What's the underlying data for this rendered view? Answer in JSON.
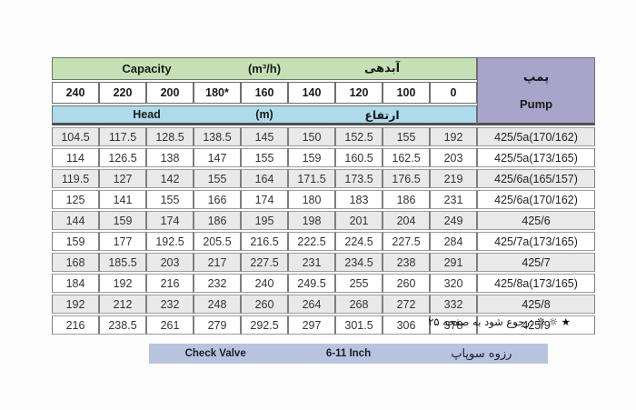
{
  "table": {
    "header": {
      "capacity_label": "Capacity",
      "capacity_unit": "(m³/h)",
      "capacity_label_fa": "آبدهی",
      "head_label": "Head",
      "head_unit": "(m)",
      "head_label_fa": "ارتفاع",
      "pump_label_fa": "پمپ",
      "pump_label_en": "Pump",
      "flow_columns": [
        "240",
        "220",
        "200",
        "180*",
        "160",
        "140",
        "120",
        "100",
        "0"
      ]
    },
    "rows": [
      {
        "values": [
          "104.5",
          "117.5",
          "128.5",
          "138.5",
          "145",
          "150",
          "152.5",
          "155",
          "192"
        ],
        "pump": "425/5a(170/162)"
      },
      {
        "values": [
          "114",
          "126.5",
          "138",
          "147",
          "155",
          "159",
          "160.5",
          "162.5",
          "203"
        ],
        "pump": "425/5a(173/165)"
      },
      {
        "values": [
          "119.5",
          "127",
          "142",
          "155",
          "164",
          "171.5",
          "173.5",
          "176.5",
          "219"
        ],
        "pump": "425/6a(165/157)"
      },
      {
        "values": [
          "125",
          "141",
          "155",
          "166",
          "174",
          "180",
          "183",
          "186",
          "231"
        ],
        "pump": "425/6a(170/162)"
      },
      {
        "values": [
          "144",
          "159",
          "174",
          "186",
          "195",
          "198",
          "201",
          "204",
          "249"
        ],
        "pump": "425/6"
      },
      {
        "values": [
          "159",
          "177",
          "192.5",
          "205.5",
          "216.5",
          "222.5",
          "224.5",
          "227.5",
          "284"
        ],
        "pump": "425/7a(173/165)"
      },
      {
        "values": [
          "168",
          "185.5",
          "203",
          "217",
          "227.5",
          "231",
          "234.5",
          "238",
          "291"
        ],
        "pump": "425/7"
      },
      {
        "values": [
          "184",
          "192",
          "216",
          "232",
          "240",
          "249.5",
          "255",
          "260",
          "320"
        ],
        "pump": "425/8a(173/165)"
      },
      {
        "values": [
          "192",
          "212",
          "232",
          "248",
          "260",
          "264",
          "268",
          "272",
          "332"
        ],
        "pump": "425/8"
      },
      {
        "values": [
          "216",
          "238.5",
          "261",
          "279",
          "292.5",
          "297",
          "301.5",
          "306",
          "378"
        ],
        "pump": "425/9"
      }
    ]
  },
  "footnote": "★ ☼ ❊ :رجوع شود به صفحه ۲۵",
  "check_valve_bar": {
    "name_en": "Check Valve",
    "size": "6-11 Inch",
    "name_fa": "رزوه سوپاپ"
  },
  "colors": {
    "capacity_header": "#c5e0b4",
    "head_header": "#aedbec",
    "pump_header": "#a9a4c9",
    "row_stripe": "#e9e9e9",
    "valve_bar": "#b8c4dd"
  }
}
